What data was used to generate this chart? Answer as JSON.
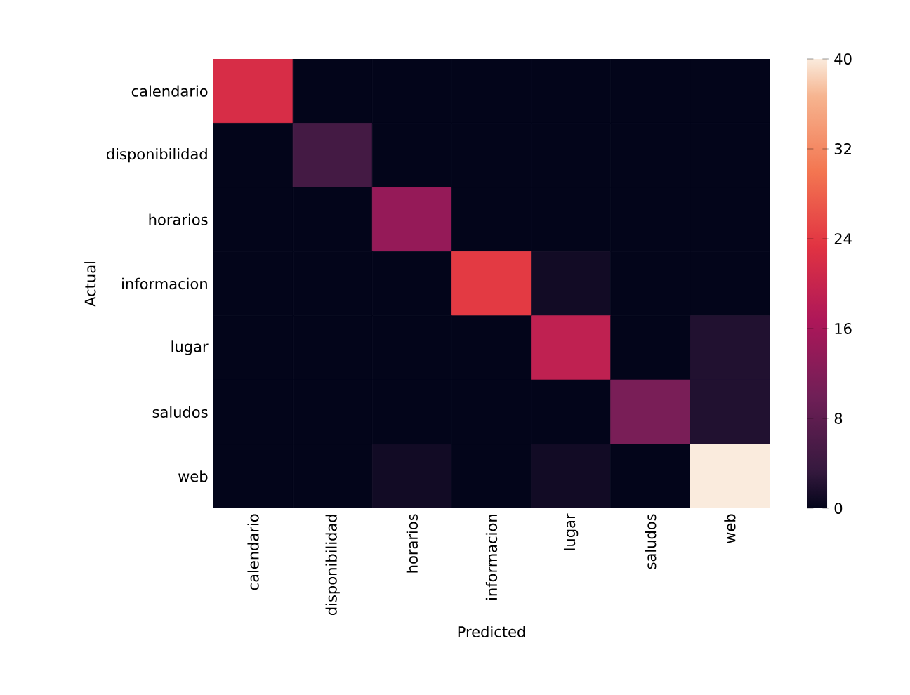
{
  "chart_data": {
    "type": "heatmap",
    "xlabel": "Predicted",
    "ylabel": "Actual",
    "categories": [
      "calendario",
      "disponibilidad",
      "horarios",
      "informacion",
      "lugar",
      "saludos",
      "web"
    ],
    "y_categories": [
      "calendario",
      "disponibilidad",
      "horarios",
      "informacion",
      "lugar",
      "saludos",
      "web"
    ],
    "cells": [
      [
        22,
        0,
        0,
        0,
        0,
        0,
        0
      ],
      [
        0,
        5,
        0,
        0,
        0,
        0,
        0
      ],
      [
        0,
        0,
        14,
        0,
        0,
        0,
        0
      ],
      [
        0,
        0,
        0,
        24,
        1,
        0,
        0
      ],
      [
        0,
        0,
        0,
        0,
        19,
        0,
        2
      ],
      [
        0,
        0,
        0,
        0,
        0,
        11,
        2
      ],
      [
        0,
        0,
        1,
        0,
        1,
        0,
        40
      ]
    ],
    "clim": [
      0,
      40
    ],
    "cticks": [
      0,
      8,
      16,
      24,
      32,
      40
    ]
  }
}
